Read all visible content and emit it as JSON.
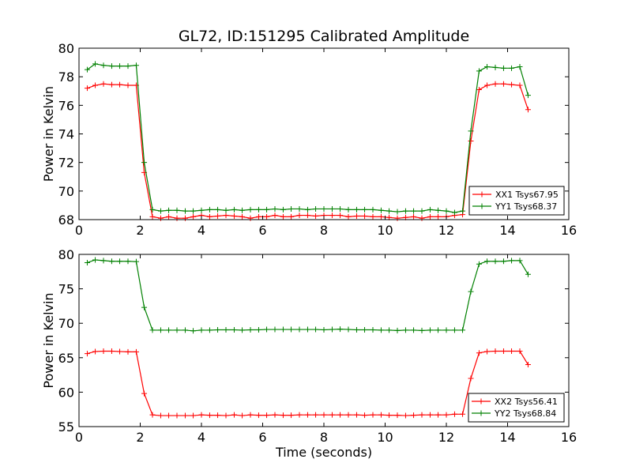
{
  "chart_data": [
    {
      "type": "line",
      "title": "GL72, ID:151295 Calibrated Amplitude",
      "xlabel": "",
      "ylabel": "Power in Kelvin",
      "xlim": [
        0,
        16
      ],
      "ylim": [
        68,
        80
      ],
      "xticks": [
        0,
        2,
        4,
        6,
        8,
        10,
        12,
        14,
        16
      ],
      "yticks": [
        68,
        70,
        72,
        74,
        76,
        78,
        80
      ],
      "grid": false,
      "legend_position": "lower-right",
      "x": [
        0.27,
        0.53,
        0.8,
        1.07,
        1.33,
        1.6,
        1.87,
        2.13,
        2.4,
        2.67,
        2.93,
        3.2,
        3.47,
        3.73,
        4.0,
        4.27,
        4.53,
        4.8,
        5.07,
        5.33,
        5.6,
        5.87,
        6.13,
        6.4,
        6.67,
        6.93,
        7.2,
        7.47,
        7.73,
        8.0,
        8.27,
        8.53,
        8.8,
        9.07,
        9.33,
        9.6,
        9.87,
        10.13,
        10.4,
        10.67,
        10.93,
        11.2,
        11.47,
        11.73,
        12.0,
        12.27,
        12.53,
        12.8,
        13.07,
        13.33,
        13.6,
        13.87,
        14.13,
        14.4,
        14.67
      ],
      "series": [
        {
          "name": "XX1 Tsys67.95",
          "color": "#ff0000",
          "values": [
            77.2,
            77.4,
            77.5,
            77.45,
            77.45,
            77.4,
            77.4,
            71.3,
            68.2,
            68.1,
            68.2,
            68.1,
            68.1,
            68.2,
            68.3,
            68.2,
            68.25,
            68.3,
            68.25,
            68.2,
            68.1,
            68.2,
            68.2,
            68.3,
            68.2,
            68.2,
            68.3,
            68.3,
            68.25,
            68.3,
            68.3,
            68.3,
            68.2,
            68.25,
            68.25,
            68.2,
            68.2,
            68.15,
            68.1,
            68.15,
            68.2,
            68.1,
            68.2,
            68.2,
            68.2,
            68.3,
            68.35,
            73.5,
            77.1,
            77.4,
            77.5,
            77.5,
            77.45,
            77.4,
            75.7
          ]
        },
        {
          "name": "YY1 Tsys68.37",
          "color": "#008000",
          "values": [
            78.5,
            78.9,
            78.8,
            78.75,
            78.75,
            78.75,
            78.8,
            72.0,
            68.7,
            68.6,
            68.65,
            68.65,
            68.6,
            68.6,
            68.65,
            68.7,
            68.7,
            68.65,
            68.7,
            68.65,
            68.7,
            68.7,
            68.7,
            68.75,
            68.7,
            68.75,
            68.75,
            68.7,
            68.75,
            68.75,
            68.75,
            68.75,
            68.7,
            68.7,
            68.7,
            68.7,
            68.65,
            68.6,
            68.55,
            68.6,
            68.6,
            68.6,
            68.7,
            68.65,
            68.6,
            68.5,
            68.6,
            74.2,
            78.4,
            78.7,
            78.65,
            78.6,
            78.6,
            78.7,
            76.7
          ]
        }
      ]
    },
    {
      "type": "line",
      "title": "",
      "xlabel": "Time (seconds)",
      "ylabel": "Power in Kelvin",
      "xlim": [
        0,
        16
      ],
      "ylim": [
        55,
        80
      ],
      "xticks": [
        0,
        2,
        4,
        6,
        8,
        10,
        12,
        14,
        16
      ],
      "yticks": [
        55,
        60,
        65,
        70,
        75,
        80
      ],
      "grid": false,
      "legend_position": "lower-right",
      "x": [
        0.27,
        0.53,
        0.8,
        1.07,
        1.33,
        1.6,
        1.87,
        2.13,
        2.4,
        2.67,
        2.93,
        3.2,
        3.47,
        3.73,
        4.0,
        4.27,
        4.53,
        4.8,
        5.07,
        5.33,
        5.6,
        5.87,
        6.13,
        6.4,
        6.67,
        6.93,
        7.2,
        7.47,
        7.73,
        8.0,
        8.27,
        8.53,
        8.8,
        9.07,
        9.33,
        9.6,
        9.87,
        10.13,
        10.4,
        10.67,
        10.93,
        11.2,
        11.47,
        11.73,
        12.0,
        12.27,
        12.53,
        12.8,
        13.07,
        13.33,
        13.6,
        13.87,
        14.13,
        14.4,
        14.67
      ],
      "series": [
        {
          "name": "XX2 Tsys56.41",
          "color": "#ff0000",
          "values": [
            65.6,
            65.9,
            65.95,
            65.95,
            65.9,
            65.85,
            65.85,
            59.8,
            56.7,
            56.6,
            56.6,
            56.6,
            56.6,
            56.6,
            56.7,
            56.65,
            56.65,
            56.6,
            56.7,
            56.6,
            56.7,
            56.65,
            56.65,
            56.7,
            56.65,
            56.65,
            56.7,
            56.7,
            56.7,
            56.7,
            56.7,
            56.7,
            56.7,
            56.7,
            56.65,
            56.7,
            56.7,
            56.65,
            56.65,
            56.6,
            56.65,
            56.7,
            56.7,
            56.7,
            56.7,
            56.8,
            56.8,
            62.0,
            65.7,
            65.9,
            65.95,
            65.95,
            65.95,
            65.95,
            64.0
          ]
        },
        {
          "name": "YY2 Tsys68.84",
          "color": "#008000",
          "values": [
            78.8,
            79.2,
            79.1,
            79.0,
            79.0,
            79.0,
            78.95,
            72.3,
            69.0,
            69.0,
            69.0,
            69.0,
            69.0,
            68.9,
            69.0,
            69.0,
            69.05,
            69.05,
            69.05,
            69.0,
            69.05,
            69.05,
            69.1,
            69.1,
            69.1,
            69.1,
            69.1,
            69.1,
            69.1,
            69.05,
            69.1,
            69.15,
            69.1,
            69.05,
            69.05,
            69.05,
            69.0,
            69.0,
            68.95,
            69.0,
            69.0,
            68.95,
            69.0,
            69.0,
            69.0,
            69.0,
            69.0,
            74.6,
            78.6,
            79.0,
            79.0,
            79.0,
            79.1,
            79.1,
            77.1
          ]
        }
      ]
    }
  ]
}
